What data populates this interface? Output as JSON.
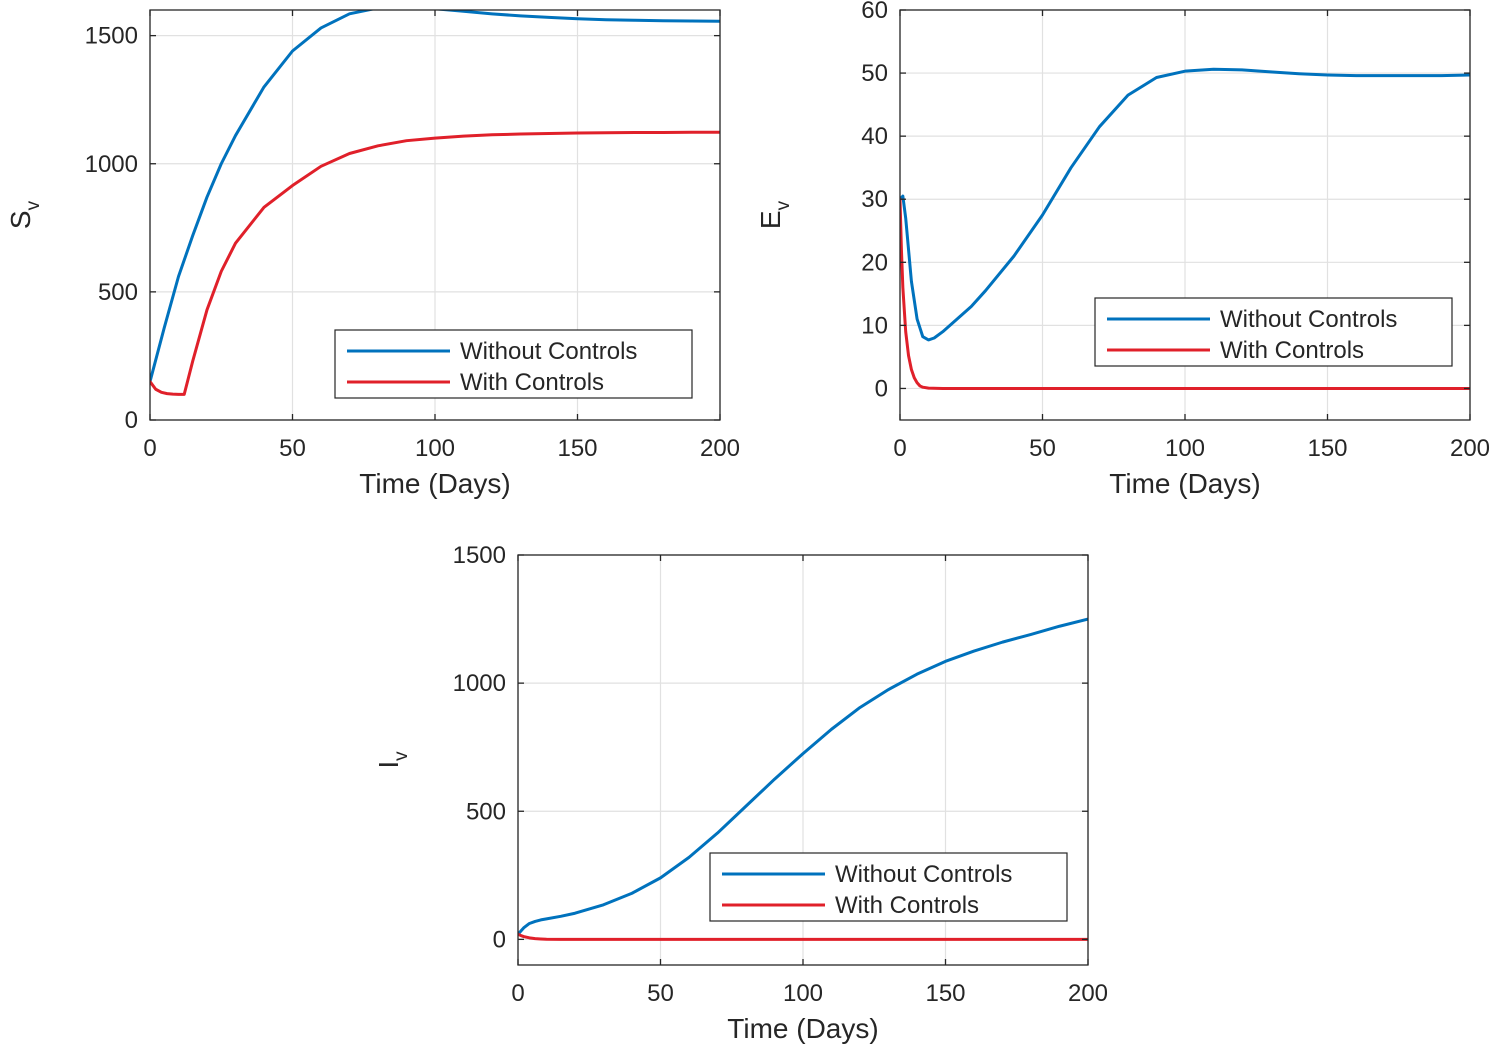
{
  "colors": {
    "without_controls": "#0072BD",
    "with_controls": "#E0202A",
    "grid": "#e1e1e1",
    "axis": "#262626"
  },
  "chart_data": [
    {
      "id": "sv",
      "type": "line",
      "xlabel": "Time (Days)",
      "ylabel": "S",
      "ylabel_sub": "v",
      "xlim": [
        0,
        200
      ],
      "ylim": [
        0,
        1600
      ],
      "xticks": [
        0,
        50,
        100,
        150,
        200
      ],
      "yticks": [
        0,
        500,
        1000,
        1500
      ],
      "grid": true,
      "legend_position": "bottom-right",
      "series": [
        {
          "name": "Without Controls",
          "color_key": "without_controls",
          "x": [
            0,
            5,
            10,
            15,
            20,
            25,
            30,
            40,
            50,
            60,
            70,
            80,
            90,
            100,
            110,
            120,
            130,
            140,
            150,
            160,
            170,
            180,
            190,
            200
          ],
          "y": [
            150,
            360,
            560,
            720,
            870,
            1000,
            1110,
            1300,
            1440,
            1530,
            1585,
            1608,
            1612,
            1605,
            1595,
            1585,
            1577,
            1571,
            1566,
            1562,
            1560,
            1558,
            1557,
            1556
          ]
        },
        {
          "name": "With Controls",
          "color_key": "with_controls",
          "x": [
            0,
            2,
            4,
            6,
            8,
            10,
            12,
            15,
            20,
            25,
            30,
            40,
            50,
            60,
            70,
            80,
            90,
            100,
            110,
            120,
            130,
            140,
            150,
            160,
            170,
            180,
            190,
            200
          ],
          "y": [
            150,
            120,
            108,
            103,
            101,
            100,
            100,
            230,
            430,
            580,
            690,
            830,
            915,
            990,
            1040,
            1070,
            1090,
            1100,
            1108,
            1113,
            1116,
            1118,
            1120,
            1121,
            1122,
            1122,
            1123,
            1123
          ]
        }
      ]
    },
    {
      "id": "ev",
      "type": "line",
      "xlabel": "Time (Days)",
      "ylabel": "E",
      "ylabel_sub": "v",
      "xlim": [
        0,
        200
      ],
      "ylim": [
        -5,
        60
      ],
      "xticks": [
        0,
        50,
        100,
        150,
        200
      ],
      "yticks": [
        0,
        10,
        20,
        30,
        40,
        50,
        60
      ],
      "grid": true,
      "legend_position": "right",
      "series": [
        {
          "name": "Without Controls",
          "color_key": "without_controls",
          "x": [
            0,
            1,
            2,
            4,
            6,
            8,
            10,
            12,
            15,
            20,
            25,
            30,
            40,
            50,
            60,
            70,
            80,
            90,
            100,
            110,
            120,
            130,
            140,
            150,
            160,
            170,
            180,
            190,
            200
          ],
          "y": [
            30,
            30.5,
            27,
            17,
            11,
            8.2,
            7.7,
            8,
            9,
            11,
            13,
            15.5,
            21,
            27.5,
            35,
            41.5,
            46.5,
            49.3,
            50.3,
            50.6,
            50.5,
            50.2,
            49.9,
            49.7,
            49.6,
            49.6,
            49.6,
            49.6,
            49.7
          ]
        },
        {
          "name": "With Controls",
          "color_key": "with_controls",
          "x": [
            0,
            0.5,
            1,
            2,
            3,
            4,
            5,
            6,
            7,
            8,
            10,
            15,
            20,
            50,
            100,
            150,
            200
          ],
          "y": [
            30,
            22,
            16,
            9,
            5.2,
            3,
            1.7,
            0.9,
            0.4,
            0.2,
            0.05,
            0,
            0,
            0,
            0,
            0,
            0
          ]
        }
      ]
    },
    {
      "id": "iv",
      "type": "line",
      "xlabel": "Time (Days)",
      "ylabel": "I",
      "ylabel_sub": "v",
      "xlim": [
        0,
        200
      ],
      "ylim": [
        -100,
        1500
      ],
      "xticks": [
        0,
        50,
        100,
        150,
        200
      ],
      "yticks": [
        0,
        500,
        1000,
        1500
      ],
      "grid": true,
      "legend_position": "bottom-right",
      "series": [
        {
          "name": "Without Controls",
          "color_key": "without_controls",
          "x": [
            0,
            2,
            4,
            6,
            8,
            10,
            15,
            20,
            30,
            40,
            50,
            60,
            70,
            80,
            90,
            100,
            110,
            120,
            130,
            140,
            150,
            160,
            170,
            180,
            190,
            200
          ],
          "y": [
            20,
            45,
            62,
            70,
            76,
            80,
            90,
            102,
            135,
            180,
            240,
            320,
            415,
            520,
            625,
            725,
            820,
            905,
            975,
            1035,
            1085,
            1125,
            1160,
            1190,
            1222,
            1250
          ]
        },
        {
          "name": "With Controls",
          "color_key": "with_controls",
          "x": [
            0,
            1,
            2,
            4,
            6,
            8,
            10,
            15,
            20,
            50,
            100,
            150,
            200
          ],
          "y": [
            20,
            15,
            11,
            6,
            3,
            1.5,
            0.5,
            0,
            0,
            0,
            0,
            0,
            0
          ]
        }
      ]
    }
  ]
}
